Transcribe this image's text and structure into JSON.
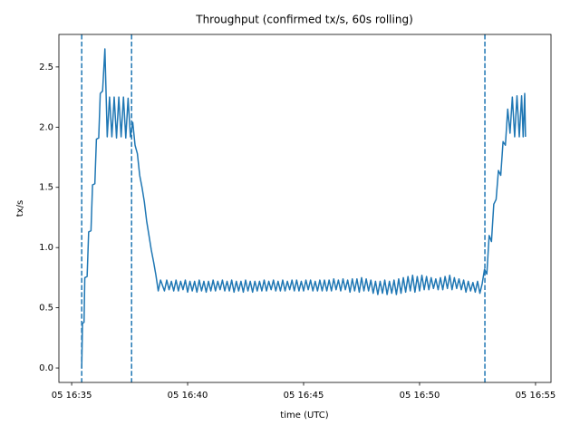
{
  "chart_data": {
    "type": "line",
    "title": "Throughput (confirmed tx/s, 60s rolling)",
    "x_label": "time (UTC)",
    "y_label": "tx/s",
    "xlim": [
      "05 16:34:27",
      "05 16:55:40"
    ],
    "xticks": [
      "05 16:35",
      "05 16:40",
      "05 16:45",
      "05 16:50",
      "05 16:55"
    ],
    "ylim": [
      -0.12,
      2.77
    ],
    "yticks": [
      {
        "value": 0,
        "label": "0.0"
      },
      0.5,
      {
        "value": 1,
        "label": "1.0"
      },
      1.5,
      {
        "value": 2,
        "label": "2.0"
      },
      2.5
    ],
    "vlines": [
      "05 16:35:26",
      "05 16:37:35",
      "05 16:52:49"
    ],
    "vline_color": "#1f77b4",
    "x": [
      "05 16:35:26",
      "05 16:35:28",
      "05 16:35:32",
      "05 16:35:34",
      "05 16:35:40",
      "05 16:35:44",
      "05 16:35:50",
      "05 16:35:54",
      "05 16:36:00",
      "05 16:36:04",
      "05 16:36:10",
      "05 16:36:14",
      "05 16:36:20",
      "05 16:36:26",
      "05 16:36:32",
      "05 16:36:38",
      "05 16:36:44",
      "05 16:36:50",
      "05 16:36:56",
      "05 16:37:02",
      "05 16:37:08",
      "05 16:37:14",
      "05 16:37:20",
      "05 16:37:26",
      "05 16:37:32",
      "05 16:37:38",
      "05 16:37:44",
      "05 16:37:50",
      "05 16:37:56",
      "05 16:38:02",
      "05 16:38:08",
      "05 16:38:14",
      "05 16:38:20",
      "05 16:38:26",
      "05 16:38:32",
      "05 16:38:38",
      "05 16:38:44",
      "05 16:38:50",
      "05 16:39:00",
      "05 16:39:06",
      "05 16:39:12",
      "05 16:39:18",
      "05 16:39:24",
      "05 16:39:30",
      "05 16:39:36",
      "05 16:39:42",
      "05 16:39:48",
      "05 16:39:54",
      "05 16:40:00",
      "05 16:40:06",
      "05 16:40:12",
      "05 16:40:18",
      "05 16:40:24",
      "05 16:40:30",
      "05 16:40:36",
      "05 16:40:42",
      "05 16:40:48",
      "05 16:40:54",
      "05 16:41:00",
      "05 16:41:06",
      "05 16:41:12",
      "05 16:41:18",
      "05 16:41:24",
      "05 16:41:30",
      "05 16:41:36",
      "05 16:41:42",
      "05 16:41:48",
      "05 16:41:54",
      "05 16:42:00",
      "05 16:42:06",
      "05 16:42:12",
      "05 16:42:18",
      "05 16:42:24",
      "05 16:42:30",
      "05 16:42:36",
      "05 16:42:42",
      "05 16:42:48",
      "05 16:42:54",
      "05 16:43:00",
      "05 16:43:06",
      "05 16:43:12",
      "05 16:43:18",
      "05 16:43:24",
      "05 16:43:30",
      "05 16:43:36",
      "05 16:43:42",
      "05 16:43:48",
      "05 16:43:54",
      "05 16:44:00",
      "05 16:44:06",
      "05 16:44:12",
      "05 16:44:18",
      "05 16:44:24",
      "05 16:44:30",
      "05 16:44:36",
      "05 16:44:42",
      "05 16:44:48",
      "05 16:44:54",
      "05 16:45:00",
      "05 16:45:06",
      "05 16:45:12",
      "05 16:45:18",
      "05 16:45:24",
      "05 16:45:30",
      "05 16:45:36",
      "05 16:45:42",
      "05 16:45:48",
      "05 16:45:54",
      "05 16:46:00",
      "05 16:46:06",
      "05 16:46:12",
      "05 16:46:18",
      "05 16:46:24",
      "05 16:46:30",
      "05 16:46:36",
      "05 16:46:42",
      "05 16:46:48",
      "05 16:46:54",
      "05 16:47:00",
      "05 16:47:06",
      "05 16:47:12",
      "05 16:47:18",
      "05 16:47:24",
      "05 16:47:30",
      "05 16:47:36",
      "05 16:47:42",
      "05 16:47:48",
      "05 16:47:54",
      "05 16:48:00",
      "05 16:48:06",
      "05 16:48:12",
      "05 16:48:18",
      "05 16:48:24",
      "05 16:48:30",
      "05 16:48:36",
      "05 16:48:42",
      "05 16:48:48",
      "05 16:48:54",
      "05 16:49:00",
      "05 16:49:06",
      "05 16:49:12",
      "05 16:49:18",
      "05 16:49:24",
      "05 16:49:30",
      "05 16:49:36",
      "05 16:49:42",
      "05 16:49:48",
      "05 16:49:54",
      "05 16:50:00",
      "05 16:50:06",
      "05 16:50:12",
      "05 16:50:18",
      "05 16:50:24",
      "05 16:50:30",
      "05 16:50:36",
      "05 16:50:42",
      "05 16:50:48",
      "05 16:50:54",
      "05 16:51:00",
      "05 16:51:06",
      "05 16:51:12",
      "05 16:51:18",
      "05 16:51:24",
      "05 16:51:30",
      "05 16:51:36",
      "05 16:51:42",
      "05 16:51:48",
      "05 16:51:54",
      "05 16:52:00",
      "05 16:52:06",
      "05 16:52:12",
      "05 16:52:18",
      "05 16:52:24",
      "05 16:52:30",
      "05 16:52:36",
      "05 16:52:42",
      "05 16:52:48",
      "05 16:52:54",
      "05 16:53:00",
      "05 16:53:06",
      "05 16:53:12",
      "05 16:53:18",
      "05 16:53:24",
      "05 16:53:30",
      "05 16:53:36",
      "05 16:53:42",
      "05 16:53:48",
      "05 16:53:54",
      "05 16:54:00",
      "05 16:54:06",
      "05 16:54:12",
      "05 16:54:18",
      "05 16:54:24",
      "05 16:54:28",
      "05 16:54:32",
      "05 16:54:34"
    ],
    "series": [
      {
        "color": "#1f77b4",
        "values": [
          0.0,
          0.37,
          0.38,
          0.75,
          0.76,
          1.13,
          1.14,
          1.52,
          1.53,
          1.9,
          1.91,
          2.28,
          2.3,
          2.65,
          1.92,
          2.25,
          1.92,
          2.25,
          1.91,
          2.25,
          1.92,
          2.25,
          1.91,
          2.24,
          1.92,
          2.04,
          1.85,
          1.78,
          1.6,
          1.5,
          1.38,
          1.22,
          1.1,
          0.98,
          0.88,
          0.77,
          0.64,
          0.73,
          0.64,
          0.73,
          0.65,
          0.72,
          0.64,
          0.73,
          0.64,
          0.72,
          0.65,
          0.73,
          0.63,
          0.72,
          0.64,
          0.72,
          0.63,
          0.73,
          0.64,
          0.72,
          0.63,
          0.72,
          0.64,
          0.73,
          0.64,
          0.72,
          0.65,
          0.73,
          0.64,
          0.72,
          0.64,
          0.73,
          0.63,
          0.72,
          0.64,
          0.72,
          0.63,
          0.73,
          0.64,
          0.72,
          0.63,
          0.72,
          0.64,
          0.72,
          0.64,
          0.73,
          0.64,
          0.72,
          0.65,
          0.73,
          0.64,
          0.72,
          0.64,
          0.73,
          0.64,
          0.72,
          0.65,
          0.73,
          0.64,
          0.73,
          0.64,
          0.72,
          0.64,
          0.73,
          0.65,
          0.73,
          0.64,
          0.72,
          0.64,
          0.73,
          0.64,
          0.73,
          0.64,
          0.73,
          0.64,
          0.74,
          0.65,
          0.73,
          0.64,
          0.74,
          0.65,
          0.73,
          0.63,
          0.74,
          0.64,
          0.74,
          0.63,
          0.75,
          0.64,
          0.74,
          0.64,
          0.73,
          0.62,
          0.72,
          0.61,
          0.72,
          0.62,
          0.73,
          0.61,
          0.72,
          0.62,
          0.73,
          0.61,
          0.74,
          0.62,
          0.75,
          0.63,
          0.76,
          0.64,
          0.77,
          0.63,
          0.76,
          0.64,
          0.77,
          0.65,
          0.76,
          0.65,
          0.75,
          0.66,
          0.74,
          0.65,
          0.75,
          0.65,
          0.76,
          0.66,
          0.77,
          0.65,
          0.75,
          0.66,
          0.74,
          0.65,
          0.73,
          0.63,
          0.72,
          0.64,
          0.71,
          0.63,
          0.72,
          0.62,
          0.7,
          0.82,
          0.78,
          1.1,
          1.05,
          1.36,
          1.4,
          1.64,
          1.6,
          1.88,
          1.85,
          2.15,
          1.95,
          2.25,
          1.92,
          2.26,
          1.92,
          2.26,
          1.92,
          2.28,
          1.92
        ]
      }
    ]
  }
}
